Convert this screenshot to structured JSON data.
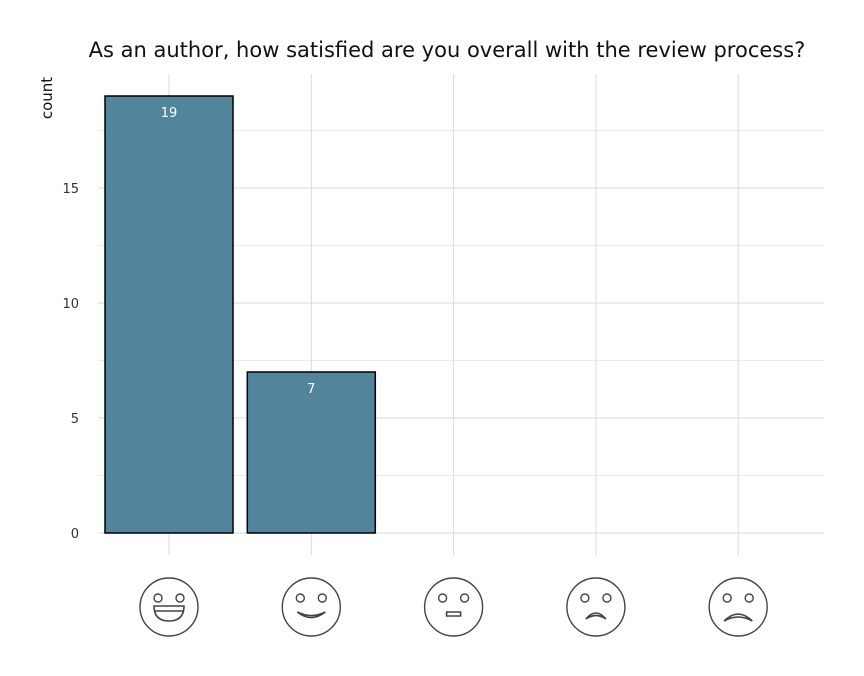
{
  "chart_data": {
    "type": "bar",
    "title": "As an author, how satisfied are you overall with the review process?",
    "xlabel": "",
    "ylabel": "count",
    "categories": [
      "very-happy-face-icon",
      "happy-face-icon",
      "neutral-face-icon",
      "sad-face-icon",
      "very-sad-face-icon"
    ],
    "values": [
      19,
      7,
      0,
      0,
      0
    ],
    "data_labels": [
      "19",
      "7",
      "",
      "",
      ""
    ],
    "yticks": [
      0,
      5,
      10,
      15
    ],
    "ytick_labels": [
      "0",
      "5",
      "10",
      "15"
    ],
    "ylim": [
      0,
      19
    ],
    "grid": true,
    "bar_color": "#52849c"
  }
}
